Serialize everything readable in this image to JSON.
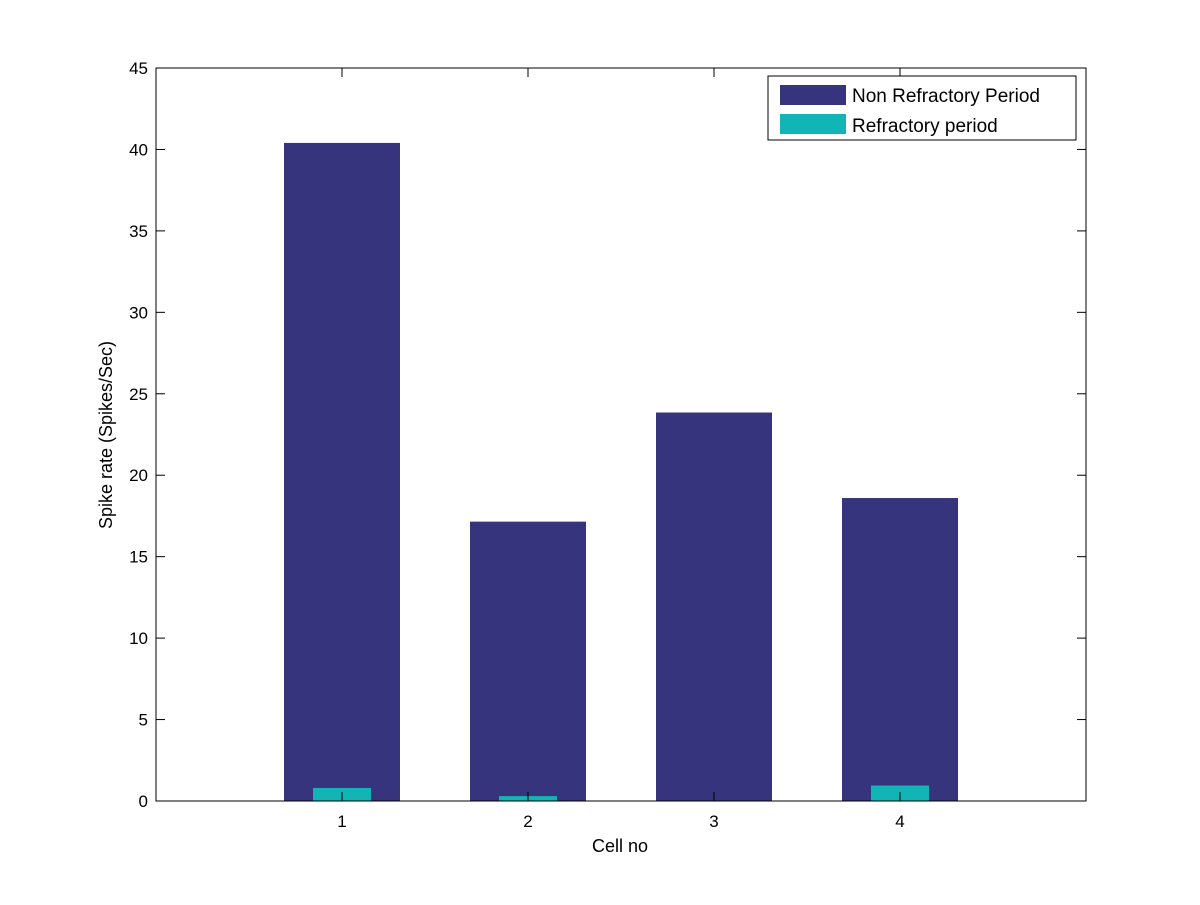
{
  "chart_data": {
    "type": "bar",
    "categories": [
      "1",
      "2",
      "3",
      "4"
    ],
    "series": [
      {
        "name": "Non Refractory Period",
        "values": [
          40.4,
          17.15,
          23.85,
          18.6
        ],
        "color": "#35347c"
      },
      {
        "name": "Refractory period",
        "values": [
          0.8,
          0.3,
          0.0,
          0.95
        ],
        "color": "#11b5b5"
      }
    ],
    "xlabel": "Cell no",
    "ylabel": "Spike rate (Spikes/Sec)",
    "ylim": [
      0,
      45
    ],
    "yticks": [
      "0",
      "5",
      "10",
      "15",
      "20",
      "25",
      "30",
      "35",
      "40",
      "45"
    ],
    "grid": false,
    "legend_position": "top-right"
  }
}
